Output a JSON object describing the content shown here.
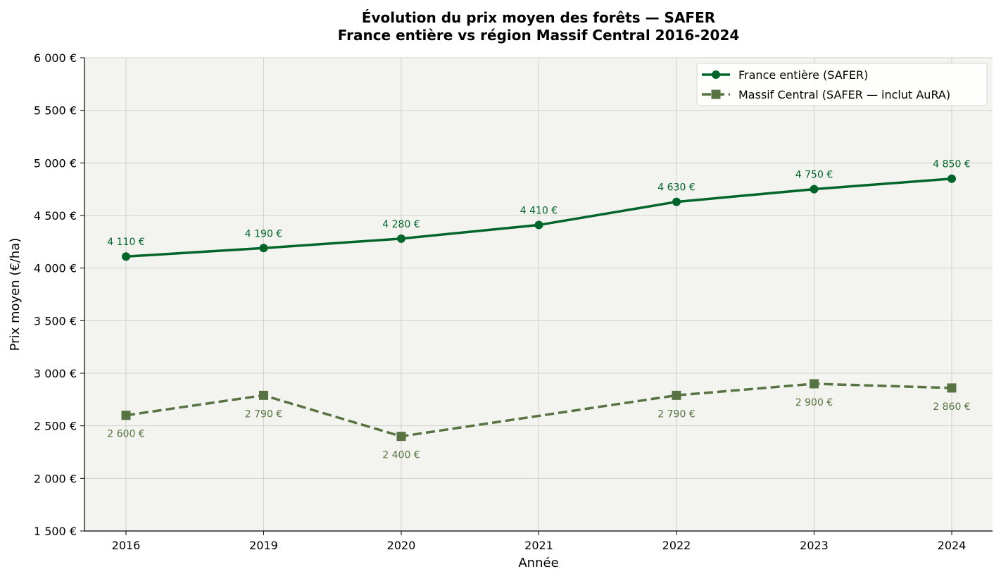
{
  "chart_data": {
    "type": "line",
    "title": "Évolution du prix moyen des forêts — SAFER",
    "subtitle": "France entière vs région Massif Central 2016-2024",
    "xlabel": "Année",
    "ylabel": "Prix moyen (€/ha)",
    "categories": [
      "2016",
      "2019",
      "2020",
      "2021",
      "2022",
      "2023",
      "2024"
    ],
    "ylim": [
      1500,
      6000
    ],
    "yticks": [
      1500,
      2000,
      2500,
      3000,
      3500,
      4000,
      4500,
      5000,
      5500,
      6000
    ],
    "ytick_labels": [
      "1 500 €",
      "2 000 €",
      "2 500 €",
      "3 000 €",
      "3 500 €",
      "4 000 €",
      "4 500 €",
      "5 000 €",
      "5 500 €",
      "6 000 €"
    ],
    "grid": true,
    "legend_position": "top-right",
    "background_color": "#f3f4ef",
    "series": [
      {
        "name": "France entière (SAFER)",
        "values": [
          4110,
          4190,
          4280,
          4410,
          4630,
          4750,
          4850
        ],
        "labels": [
          "4 110 €",
          "4 190 €",
          "4 280 €",
          "4 410 €",
          "4 630 €",
          "4 750 €",
          "4 850 €"
        ],
        "color": "#00652b",
        "marker": "circle",
        "linestyle": "solid",
        "label_position": "above"
      },
      {
        "name": "Massif Central (SAFER — inclut AuRA)",
        "values": [
          2600,
          2790,
          2400,
          null,
          2790,
          2900,
          2860
        ],
        "labels": [
          "2 600 €",
          "2 790 €",
          "2 400 €",
          null,
          "2 790 €",
          "2 900 €",
          "2 860 €"
        ],
        "color": "#567341",
        "marker": "square",
        "linestyle": "dashed",
        "label_position": "below"
      }
    ]
  }
}
